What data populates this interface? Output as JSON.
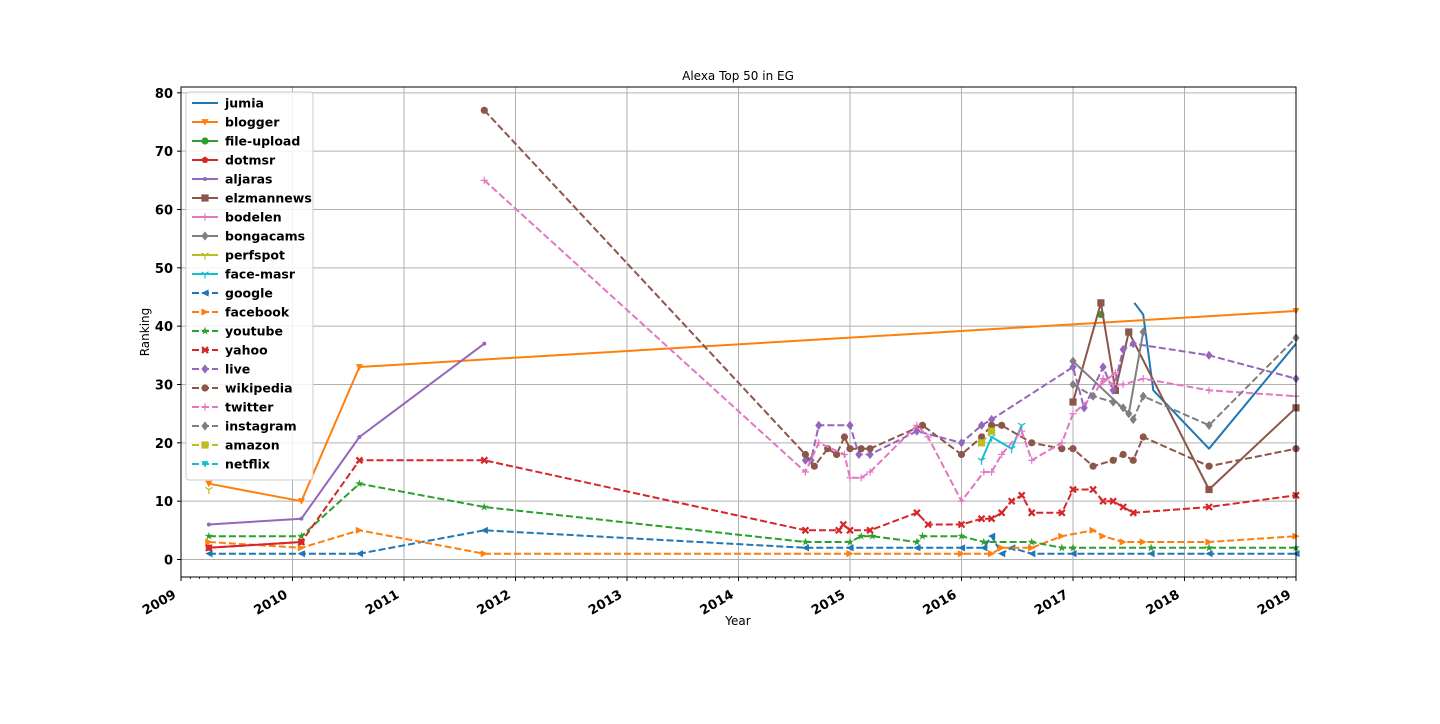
{
  "chart_data": {
    "type": "line",
    "title": "Alexa Top 50 in EG",
    "xlabel": "Year",
    "ylabel": "Ranking",
    "xlim": [
      2009,
      2019
    ],
    "ylim": [
      -3,
      81
    ],
    "x_ticks": [
      "2009",
      "2010",
      "2011",
      "2012",
      "2013",
      "2014",
      "2015",
      "2016",
      "2017",
      "2018",
      "2019"
    ],
    "y_ticks": [
      0,
      10,
      20,
      30,
      40,
      50,
      60,
      70,
      80
    ],
    "grid": true,
    "legend_position": "upper-left",
    "series": [
      {
        "name": "jumia",
        "color": "#1f77b4",
        "dash": "solid",
        "marker": "none",
        "points": [
          [
            2017.55,
            44
          ],
          [
            2017.63,
            42
          ],
          [
            2017.72,
            29
          ],
          [
            2018.22,
            19
          ],
          [
            2019.0,
            37
          ]
        ]
      },
      {
        "name": "blogger",
        "color": "#ff7f0e",
        "dash": "solid",
        "marker": "tri_down",
        "points": [
          [
            2009.25,
            13
          ],
          [
            2010.08,
            10
          ],
          [
            2010.6,
            33
          ],
          [
            2019.0,
            42.6
          ]
        ]
      },
      {
        "name": "file-upload",
        "color": "#2ca02c",
        "dash": "solid",
        "marker": "circle",
        "points": [
          [
            2017.25,
            42
          ]
        ]
      },
      {
        "name": "dotmsr",
        "color": "#d62728",
        "dash": "solid",
        "marker": "pentagon",
        "points": [
          [
            2009.25,
            2
          ],
          [
            2010.08,
            3
          ]
        ]
      },
      {
        "name": "aljaras",
        "color": "#9467bd",
        "dash": "solid",
        "marker": "point",
        "points": [
          [
            2009.25,
            6
          ],
          [
            2010.08,
            7
          ],
          [
            2010.6,
            21
          ],
          [
            2011.72,
            37
          ]
        ]
      },
      {
        "name": "elzmannews",
        "color": "#8c564b",
        "dash": "solid",
        "marker": "square",
        "points": [
          [
            2017.0,
            27
          ],
          [
            2017.25,
            44
          ],
          [
            2017.38,
            29
          ],
          [
            2017.5,
            39
          ],
          [
            2018.22,
            12
          ],
          [
            2019.0,
            26
          ]
        ]
      },
      {
        "name": "bodelen",
        "color": "#e377c2",
        "dash": "solid",
        "marker": "plus",
        "points": [
          [
            2017.25,
            30
          ],
          [
            2017.38,
            32
          ]
        ]
      },
      {
        "name": "bongacams",
        "color": "#7f7f7f",
        "dash": "solid",
        "marker": "diamond",
        "points": [
          [
            2017.0,
            34
          ],
          [
            2017.5,
            25
          ],
          [
            2017.63,
            39
          ]
        ]
      },
      {
        "name": "perfspot",
        "color": "#bcbd22",
        "dash": "solid",
        "marker": "tri_up",
        "points": [
          [
            2009.25,
            12
          ]
        ]
      },
      {
        "name": "face-masr",
        "color": "#17becf",
        "dash": "solid",
        "marker": "tri_up",
        "points": [
          [
            2016.18,
            17
          ],
          [
            2016.27,
            21
          ],
          [
            2016.45,
            19
          ],
          [
            2016.54,
            23
          ]
        ]
      },
      {
        "name": "google",
        "color": "#1f77b4",
        "dash": "dashed",
        "marker": "triangle_left",
        "points": [
          [
            2009.25,
            1
          ],
          [
            2010.08,
            1
          ],
          [
            2010.6,
            1
          ],
          [
            2011.72,
            5
          ],
          [
            2014.6,
            2
          ],
          [
            2015.0,
            2
          ],
          [
            2015.6,
            2
          ],
          [
            2016.0,
            2
          ],
          [
            2016.2,
            2
          ],
          [
            2016.27,
            4
          ],
          [
            2016.36,
            1
          ],
          [
            2016.45,
            2
          ],
          [
            2016.63,
            1
          ],
          [
            2017.0,
            1
          ],
          [
            2017.7,
            1
          ],
          [
            2018.22,
            1
          ],
          [
            2019.0,
            1
          ]
        ]
      },
      {
        "name": "facebook",
        "color": "#ff7f0e",
        "dash": "dashed",
        "marker": "triangle_right",
        "points": [
          [
            2009.25,
            3
          ],
          [
            2010.08,
            2
          ],
          [
            2010.6,
            5
          ],
          [
            2011.72,
            1
          ],
          [
            2015.0,
            1
          ],
          [
            2016.0,
            1
          ],
          [
            2016.27,
            1
          ],
          [
            2016.36,
            2
          ],
          [
            2016.63,
            2
          ],
          [
            2016.9,
            4
          ],
          [
            2017.18,
            5
          ],
          [
            2017.27,
            4
          ],
          [
            2017.45,
            3
          ],
          [
            2017.63,
            3
          ],
          [
            2018.22,
            3
          ],
          [
            2019.0,
            4
          ]
        ]
      },
      {
        "name": "youtube",
        "color": "#2ca02c",
        "dash": "dashed",
        "marker": "star",
        "points": [
          [
            2009.25,
            4
          ],
          [
            2010.08,
            4
          ],
          [
            2010.6,
            13
          ],
          [
            2011.72,
            9
          ],
          [
            2014.6,
            3
          ],
          [
            2015.0,
            3
          ],
          [
            2015.1,
            4
          ],
          [
            2015.2,
            4
          ],
          [
            2015.6,
            3
          ],
          [
            2015.65,
            4
          ],
          [
            2016.0,
            4
          ],
          [
            2016.2,
            3
          ],
          [
            2016.63,
            3
          ],
          [
            2016.9,
            2
          ],
          [
            2017.0,
            2
          ],
          [
            2017.7,
            2
          ],
          [
            2018.22,
            2
          ],
          [
            2019.0,
            2
          ]
        ]
      },
      {
        "name": "yahoo",
        "color": "#d62728",
        "dash": "dashed",
        "marker": "x",
        "points": [
          [
            2009.25,
            2
          ],
          [
            2010.08,
            3
          ],
          [
            2010.6,
            17
          ],
          [
            2011.72,
            17
          ],
          [
            2014.6,
            5
          ],
          [
            2014.9,
            5
          ],
          [
            2014.94,
            6
          ],
          [
            2015.0,
            5
          ],
          [
            2015.18,
            5
          ],
          [
            2015.6,
            8
          ],
          [
            2015.7,
            6
          ],
          [
            2016.0,
            6
          ],
          [
            2016.18,
            7
          ],
          [
            2016.27,
            7
          ],
          [
            2016.36,
            8
          ],
          [
            2016.45,
            10
          ],
          [
            2016.54,
            11
          ],
          [
            2016.63,
            8
          ],
          [
            2016.9,
            8
          ],
          [
            2017.0,
            12
          ],
          [
            2017.18,
            12
          ],
          [
            2017.27,
            10
          ],
          [
            2017.36,
            10
          ],
          [
            2017.45,
            9
          ],
          [
            2017.54,
            8
          ],
          [
            2018.22,
            9
          ],
          [
            2019.0,
            11
          ]
        ]
      },
      {
        "name": "live",
        "color": "#9467bd",
        "dash": "dashed",
        "marker": "diamond",
        "points": [
          [
            2014.6,
            17
          ],
          [
            2014.65,
            17
          ],
          [
            2014.72,
            23
          ],
          [
            2015.0,
            23
          ],
          [
            2015.08,
            18
          ],
          [
            2015.18,
            18
          ],
          [
            2015.6,
            22
          ],
          [
            2016.0,
            20
          ],
          [
            2016.18,
            23
          ],
          [
            2016.27,
            24
          ],
          [
            2017.0,
            33
          ],
          [
            2017.1,
            26
          ],
          [
            2017.27,
            33
          ],
          [
            2017.36,
            29
          ],
          [
            2017.45,
            36
          ],
          [
            2017.54,
            37
          ],
          [
            2018.22,
            35
          ],
          [
            2019.0,
            31
          ]
        ]
      },
      {
        "name": "wikipedia",
        "color": "#8c564b",
        "dash": "dashed",
        "marker": "circle",
        "points": [
          [
            2011.72,
            77
          ],
          [
            2014.6,
            18
          ],
          [
            2014.68,
            16
          ],
          [
            2014.8,
            19
          ],
          [
            2014.88,
            18
          ],
          [
            2014.95,
            21
          ],
          [
            2015.0,
            19
          ],
          [
            2015.1,
            19
          ],
          [
            2015.18,
            19
          ],
          [
            2015.65,
            23
          ],
          [
            2016.0,
            18
          ],
          [
            2016.18,
            21
          ],
          [
            2016.27,
            23
          ],
          [
            2016.36,
            23
          ],
          [
            2016.63,
            20
          ],
          [
            2016.9,
            19
          ],
          [
            2017.0,
            19
          ],
          [
            2017.18,
            16
          ],
          [
            2017.36,
            17
          ],
          [
            2017.45,
            18
          ],
          [
            2017.54,
            17
          ],
          [
            2017.63,
            21
          ],
          [
            2018.22,
            16
          ],
          [
            2019.0,
            19
          ]
        ]
      },
      {
        "name": "twitter",
        "color": "#e377c2",
        "dash": "dashed",
        "marker": "plus",
        "points": [
          [
            2011.72,
            65
          ],
          [
            2014.6,
            15
          ],
          [
            2014.72,
            20
          ],
          [
            2014.95,
            18
          ],
          [
            2015.0,
            14
          ],
          [
            2015.1,
            14
          ],
          [
            2015.18,
            15
          ],
          [
            2015.6,
            23
          ],
          [
            2015.7,
            21
          ],
          [
            2016.0,
            10
          ],
          [
            2016.2,
            15
          ],
          [
            2016.27,
            15
          ],
          [
            2016.36,
            18
          ],
          [
            2016.54,
            22
          ],
          [
            2016.63,
            17
          ],
          [
            2016.9,
            20
          ],
          [
            2017.0,
            25
          ],
          [
            2017.18,
            28
          ],
          [
            2017.27,
            31
          ],
          [
            2017.36,
            30
          ],
          [
            2017.45,
            30
          ],
          [
            2017.63,
            31
          ],
          [
            2018.22,
            29
          ],
          [
            2019.0,
            28
          ]
        ]
      },
      {
        "name": "instagram",
        "color": "#7f7f7f",
        "dash": "dashed",
        "marker": "diamond",
        "points": [
          [
            2017.0,
            30
          ],
          [
            2017.18,
            28
          ],
          [
            2017.36,
            27
          ],
          [
            2017.45,
            26
          ],
          [
            2017.54,
            24
          ],
          [
            2017.63,
            28
          ],
          [
            2018.22,
            23
          ],
          [
            2019.0,
            38
          ]
        ]
      },
      {
        "name": "amazon",
        "color": "#bcbd22",
        "dash": "dashed",
        "marker": "square",
        "points": [
          [
            2016.18,
            20
          ],
          [
            2016.27,
            22
          ]
        ]
      },
      {
        "name": "netflix",
        "color": "#17becf",
        "dash": "dashed",
        "marker": "tri_down",
        "points": []
      }
    ]
  }
}
